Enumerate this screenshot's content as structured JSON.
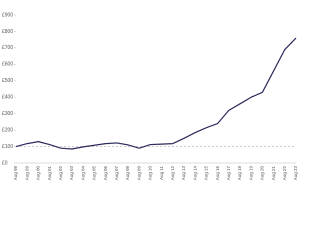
{
  "chart_data": {
    "type": "line",
    "categories": [
      "Aug 98",
      "Aug 99",
      "Aug 00",
      "Aug 01",
      "Aug 02",
      "Aug 03",
      "Aug 04",
      "Aug 05",
      "Aug 06",
      "Aug 07",
      "Aug 08",
      "Aug 09",
      "Aug 10",
      "Aug 11",
      "Aug 12",
      "Aug 13",
      "Aug 14",
      "Aug 15",
      "Aug 16",
      "Aug 17",
      "Aug 18",
      "Aug 19",
      "Aug 20",
      "Aug 21",
      "Aug 22",
      "Aug 23"
    ],
    "values": [
      100,
      118,
      130,
      112,
      90,
      85,
      98,
      108,
      118,
      122,
      110,
      90,
      112,
      115,
      118,
      150,
      185,
      215,
      240,
      320,
      360,
      400,
      430,
      560,
      690,
      760
    ],
    "color": "#2b2a5c",
    "ylim": [
      0,
      900
    ],
    "yticks": [
      {
        "value": 0,
        "label": "£0"
      },
      {
        "value": 100,
        "label": "£100"
      },
      {
        "value": 200,
        "label": "£200"
      },
      {
        "value": 300,
        "label": "£300"
      },
      {
        "value": 400,
        "label": "£400"
      },
      {
        "value": 500,
        "label": "£500"
      },
      {
        "value": 600,
        "label": "£600"
      },
      {
        "value": 700,
        "label": "£700"
      },
      {
        "value": 800,
        "label": "£800"
      },
      {
        "value": 900,
        "label": "£900"
      }
    ],
    "reference_line": 100,
    "grid": false
  }
}
